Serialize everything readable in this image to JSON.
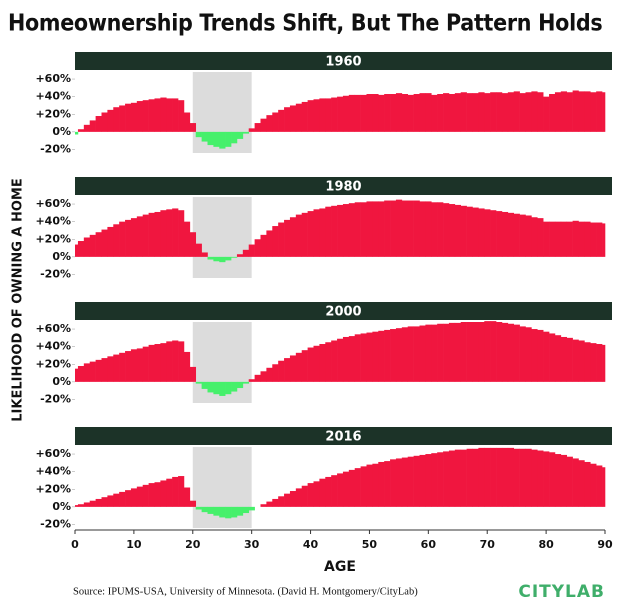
{
  "title": "Homeownership Trends Shift, But The Pattern Holds",
  "y_axis_label": "LIKELIHOOD OF OWNING A HOME",
  "x_axis_label": "AGE",
  "source": "Source: IPUMS-USA, University of Minnesota. (David H. Montgomery/CityLab)",
  "brand": "CITYLAB",
  "chart_data": [
    {
      "type": "bar",
      "title": "1960",
      "x": [
        0,
        1,
        2,
        3,
        4,
        5,
        6,
        7,
        8,
        9,
        10,
        11,
        12,
        13,
        14,
        15,
        16,
        17,
        18,
        19,
        20,
        21,
        22,
        23,
        24,
        25,
        26,
        27,
        28,
        29,
        30,
        31,
        32,
        33,
        34,
        35,
        36,
        37,
        38,
        39,
        40,
        41,
        42,
        43,
        44,
        45,
        46,
        47,
        48,
        49,
        50,
        51,
        52,
        53,
        54,
        55,
        56,
        57,
        58,
        59,
        60,
        61,
        62,
        63,
        64,
        65,
        66,
        67,
        68,
        69,
        70,
        71,
        72,
        73,
        74,
        75,
        76,
        77,
        78,
        79,
        80,
        81,
        82,
        83,
        84,
        85,
        86,
        87,
        88,
        89,
        90
      ],
      "values": [
        -3,
        3,
        8,
        13,
        18,
        22,
        25,
        28,
        30,
        32,
        33,
        35,
        36,
        37,
        38,
        39,
        38,
        38,
        36,
        22,
        10,
        -6,
        -11,
        -15,
        -17,
        -19,
        -17,
        -13,
        -8,
        -2,
        4,
        10,
        15,
        19,
        22,
        25,
        28,
        30,
        32,
        34,
        36,
        37,
        38,
        38,
        39,
        40,
        41,
        42,
        42,
        42,
        43,
        43,
        42,
        43,
        43,
        44,
        43,
        42,
        43,
        44,
        44,
        42,
        43,
        44,
        43,
        44,
        45,
        44,
        44,
        45,
        44,
        45,
        45,
        44,
        45,
        46,
        44,
        45,
        46,
        45,
        40,
        43,
        45,
        46,
        45,
        47,
        46,
        46,
        45,
        46,
        45
      ],
      "colors": {
        "positive": "#f0163f",
        "negative": "#46f06b"
      },
      "shaded_x": [
        20,
        30
      ],
      "xlim": [
        0,
        90
      ],
      "ylim": [
        -24,
        68
      ],
      "yticks": [
        {
          "value": 60,
          "label": "+60%"
        },
        {
          "value": 40,
          "label": "+40%"
        },
        {
          "value": 20,
          "label": "+20%"
        },
        {
          "value": 0,
          "label": "0%"
        },
        {
          "value": -20,
          "label": "-20%"
        }
      ]
    },
    {
      "type": "bar",
      "title": "1980",
      "x": [
        0,
        1,
        2,
        3,
        4,
        5,
        6,
        7,
        8,
        9,
        10,
        11,
        12,
        13,
        14,
        15,
        16,
        17,
        18,
        19,
        20,
        21,
        22,
        23,
        24,
        25,
        26,
        27,
        28,
        29,
        30,
        31,
        32,
        33,
        34,
        35,
        36,
        37,
        38,
        39,
        40,
        41,
        42,
        43,
        44,
        45,
        46,
        47,
        48,
        49,
        50,
        51,
        52,
        53,
        54,
        55,
        56,
        57,
        58,
        59,
        60,
        61,
        62,
        63,
        64,
        65,
        66,
        67,
        68,
        69,
        70,
        71,
        72,
        73,
        74,
        75,
        76,
        77,
        78,
        79,
        80,
        81,
        82,
        83,
        84,
        85,
        86,
        87,
        88,
        89,
        90
      ],
      "values": [
        14,
        18,
        22,
        25,
        28,
        31,
        34,
        37,
        40,
        42,
        44,
        46,
        48,
        50,
        51,
        53,
        54,
        55,
        53,
        40,
        28,
        15,
        5,
        -3,
        -5,
        -6,
        -4,
        -1,
        3,
        8,
        14,
        20,
        25,
        30,
        35,
        39,
        42,
        45,
        48,
        50,
        52,
        54,
        55,
        57,
        58,
        59,
        60,
        61,
        62,
        62,
        63,
        63,
        63,
        64,
        64,
        65,
        64,
        64,
        64,
        63,
        63,
        62,
        62,
        61,
        60,
        59,
        58,
        57,
        56,
        55,
        54,
        53,
        52,
        51,
        50,
        49,
        48,
        47,
        45,
        44,
        40,
        40,
        40,
        40,
        40,
        41,
        40,
        40,
        39,
        39,
        38
      ],
      "colors": {
        "positive": "#f0163f",
        "negative": "#46f06b"
      },
      "shaded_x": [
        20,
        30
      ],
      "xlim": [
        0,
        90
      ],
      "ylim": [
        -24,
        68
      ],
      "yticks": [
        {
          "value": 60,
          "label": "+60%"
        },
        {
          "value": 40,
          "label": "+40%"
        },
        {
          "value": 20,
          "label": "+20%"
        },
        {
          "value": 0,
          "label": "0%"
        },
        {
          "value": -20,
          "label": "-20%"
        }
      ]
    },
    {
      "type": "bar",
      "title": "2000",
      "x": [
        0,
        1,
        2,
        3,
        4,
        5,
        6,
        7,
        8,
        9,
        10,
        11,
        12,
        13,
        14,
        15,
        16,
        17,
        18,
        19,
        20,
        21,
        22,
        23,
        24,
        25,
        26,
        27,
        28,
        29,
        30,
        31,
        32,
        33,
        34,
        35,
        36,
        37,
        38,
        39,
        40,
        41,
        42,
        43,
        44,
        45,
        46,
        47,
        48,
        49,
        50,
        51,
        52,
        53,
        54,
        55,
        56,
        57,
        58,
        59,
        60,
        61,
        62,
        63,
        64,
        65,
        66,
        67,
        68,
        69,
        70,
        71,
        72,
        73,
        74,
        75,
        76,
        77,
        78,
        79,
        80,
        81,
        82,
        83,
        84,
        85,
        86,
        87,
        88,
        89,
        90
      ],
      "values": [
        15,
        18,
        21,
        23,
        25,
        27,
        29,
        31,
        33,
        35,
        37,
        38,
        40,
        42,
        43,
        44,
        46,
        47,
        46,
        34,
        17,
        -2,
        -8,
        -12,
        -14,
        -16,
        -14,
        -11,
        -7,
        -2,
        3,
        8,
        12,
        16,
        20,
        24,
        27,
        30,
        33,
        36,
        39,
        41,
        43,
        45,
        47,
        49,
        51,
        52,
        54,
        55,
        56,
        57,
        58,
        59,
        60,
        61,
        62,
        63,
        63,
        64,
        65,
        65,
        66,
        66,
        67,
        67,
        68,
        68,
        68,
        68,
        69,
        69,
        68,
        67,
        66,
        65,
        63,
        62,
        60,
        59,
        57,
        55,
        53,
        51,
        50,
        48,
        47,
        45,
        44,
        43,
        42
      ],
      "colors": {
        "positive": "#f0163f",
        "negative": "#46f06b"
      },
      "shaded_x": [
        20,
        30
      ],
      "xlim": [
        0,
        90
      ],
      "ylim": [
        -24,
        68
      ],
      "yticks": [
        {
          "value": 60,
          "label": "+60%"
        },
        {
          "value": 40,
          "label": "+40%"
        },
        {
          "value": 20,
          "label": "+20%"
        },
        {
          "value": 0,
          "label": "0%"
        },
        {
          "value": -20,
          "label": "-20%"
        }
      ]
    },
    {
      "type": "bar",
      "title": "2016",
      "x": [
        0,
        1,
        2,
        3,
        4,
        5,
        6,
        7,
        8,
        9,
        10,
        11,
        12,
        13,
        14,
        15,
        16,
        17,
        18,
        19,
        20,
        21,
        22,
        23,
        24,
        25,
        26,
        27,
        28,
        29,
        30,
        31,
        32,
        33,
        34,
        35,
        36,
        37,
        38,
        39,
        40,
        41,
        42,
        43,
        44,
        45,
        46,
        47,
        48,
        49,
        50,
        51,
        52,
        53,
        54,
        55,
        56,
        57,
        58,
        59,
        60,
        61,
        62,
        63,
        64,
        65,
        66,
        67,
        68,
        69,
        70,
        71,
        72,
        73,
        74,
        75,
        76,
        77,
        78,
        79,
        80,
        81,
        82,
        83,
        84,
        85,
        86,
        87,
        88,
        89,
        90
      ],
      "values": [
        2,
        3,
        5,
        7,
        9,
        11,
        13,
        15,
        17,
        19,
        21,
        23,
        25,
        27,
        28,
        30,
        32,
        34,
        35,
        22,
        7,
        -3,
        -6,
        -8,
        -10,
        -12,
        -13,
        -12,
        -10,
        -7,
        -4,
        0,
        3,
        6,
        9,
        12,
        15,
        18,
        21,
        24,
        27,
        29,
        32,
        34,
        36,
        38,
        40,
        42,
        44,
        46,
        48,
        49,
        51,
        52,
        54,
        55,
        56,
        57,
        58,
        59,
        60,
        61,
        62,
        63,
        64,
        65,
        65,
        66,
        66,
        67,
        67,
        67,
        67,
        67,
        67,
        66,
        66,
        66,
        65,
        64,
        63,
        62,
        60,
        59,
        57,
        55,
        53,
        51,
        49,
        47,
        45
      ],
      "colors": {
        "positive": "#f0163f",
        "negative": "#46f06b"
      },
      "shaded_x": [
        20,
        30
      ],
      "xlim": [
        0,
        90
      ],
      "ylim": [
        -24,
        68
      ],
      "yticks": [
        {
          "value": 60,
          "label": "+60%"
        },
        {
          "value": 40,
          "label": "+40%"
        },
        {
          "value": 20,
          "label": "+20%"
        },
        {
          "value": 0,
          "label": "0%"
        },
        {
          "value": -20,
          "label": "-20%"
        }
      ],
      "xticks": [
        0,
        10,
        20,
        30,
        40,
        50,
        60,
        70,
        80,
        90
      ]
    }
  ]
}
